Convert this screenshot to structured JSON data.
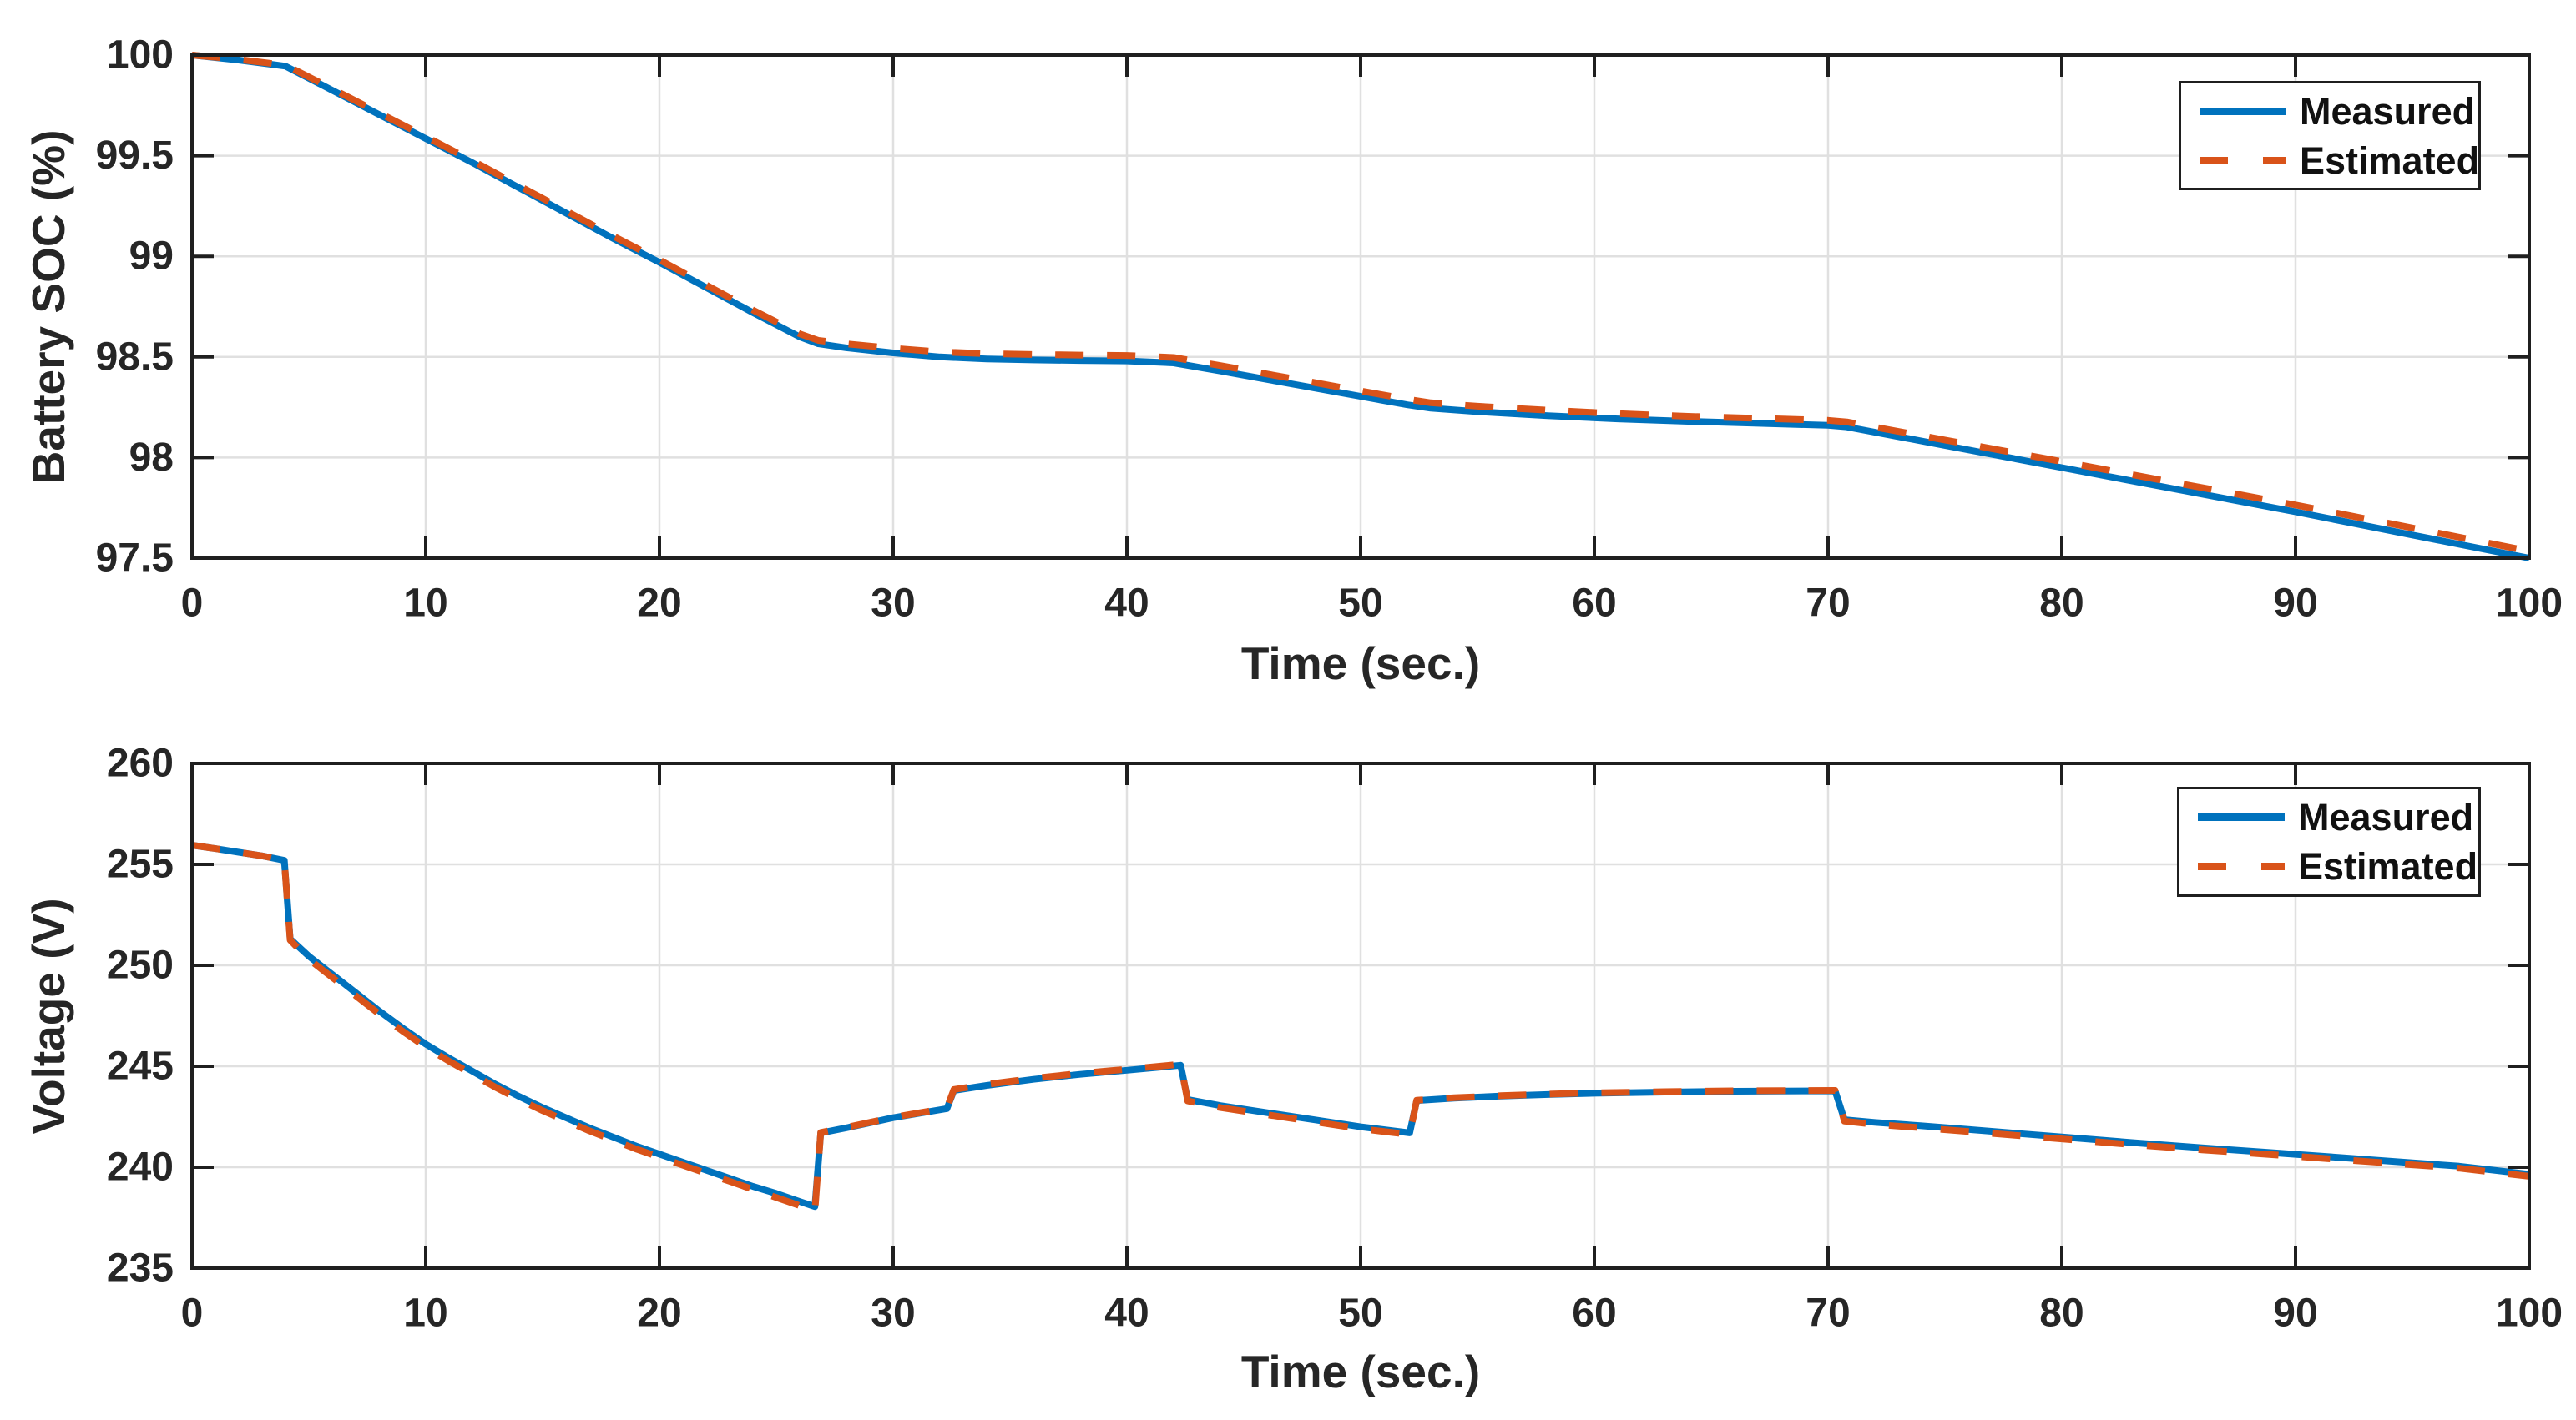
{
  "figure": {
    "background": "#ffffff",
    "axis_color": "#1f1f1f",
    "grid_color": "#e0e0e0",
    "tick_text_color": "#262626"
  },
  "chart_data": [
    {
      "type": "line",
      "title": "",
      "xlabel": "Time (sec.)",
      "ylabel": "Battery SOC (%)",
      "xlim": [
        0,
        100
      ],
      "ylim": [
        97.5,
        100
      ],
      "xticks": [
        0,
        10,
        20,
        30,
        40,
        50,
        60,
        70,
        80,
        90,
        100
      ],
      "xtick_labels": [
        "0",
        "10",
        "20",
        "30",
        "40",
        "50",
        "60",
        "70",
        "80",
        "90",
        "100"
      ],
      "yticks": [
        97.5,
        98,
        98.5,
        99,
        99.5,
        100
      ],
      "ytick_labels": [
        "97.5",
        "98",
        "98.5",
        "99",
        "99.5",
        "100"
      ],
      "grid": true,
      "legend_position": "top-right",
      "series": [
        {
          "name": "Measured",
          "color": "#0072BD",
          "style": "solid",
          "points": [
            [
              0,
              100
            ],
            [
              2,
              99.975
            ],
            [
              4,
              99.945
            ],
            [
              6,
              99.825
            ],
            [
              8,
              99.705
            ],
            [
              10,
              99.585
            ],
            [
              12,
              99.465
            ],
            [
              14,
              99.34
            ],
            [
              16,
              99.215
            ],
            [
              18,
              99.09
            ],
            [
              20,
              98.97
            ],
            [
              22,
              98.845
            ],
            [
              24,
              98.72
            ],
            [
              26,
              98.6
            ],
            [
              26.8,
              98.565
            ],
            [
              28,
              98.545
            ],
            [
              30,
              98.52
            ],
            [
              32,
              98.5
            ],
            [
              34,
              98.49
            ],
            [
              36,
              98.485
            ],
            [
              38,
              98.482
            ],
            [
              40,
              98.48
            ],
            [
              42,
              98.47
            ],
            [
              44,
              98.43
            ],
            [
              46,
              98.388
            ],
            [
              48,
              98.346
            ],
            [
              50,
              98.304
            ],
            [
              52,
              98.262
            ],
            [
              53,
              98.245
            ],
            [
              55,
              98.228
            ],
            [
              58,
              98.208
            ],
            [
              61,
              98.192
            ],
            [
              64,
              98.18
            ],
            [
              67,
              98.17
            ],
            [
              70,
              98.16
            ],
            [
              70.8,
              98.152
            ],
            [
              75,
              98.06
            ],
            [
              80,
              97.95
            ],
            [
              85,
              97.84
            ],
            [
              90,
              97.73
            ],
            [
              95,
              97.615
            ],
            [
              100,
              97.5
            ]
          ]
        },
        {
          "name": "Estimated",
          "color": "#D95319",
          "style": "dashed",
          "points": [
            [
              0,
              100
            ],
            [
              2,
              99.978
            ],
            [
              4,
              99.95
            ],
            [
              6,
              99.832
            ],
            [
              8,
              99.713
            ],
            [
              10,
              99.594
            ],
            [
              12,
              99.475
            ],
            [
              14,
              99.35
            ],
            [
              16,
              99.226
            ],
            [
              18,
              99.102
            ],
            [
              20,
              98.982
            ],
            [
              22,
              98.857
            ],
            [
              24,
              98.733
            ],
            [
              26,
              98.615
            ],
            [
              26.8,
              98.582
            ],
            [
              28,
              98.565
            ],
            [
              30,
              98.543
            ],
            [
              32,
              98.525
            ],
            [
              34,
              98.516
            ],
            [
              36,
              98.512
            ],
            [
              38,
              98.509
            ],
            [
              40,
              98.507
            ],
            [
              42,
              98.497
            ],
            [
              44,
              98.457
            ],
            [
              46,
              98.415
            ],
            [
              48,
              98.373
            ],
            [
              50,
              98.331
            ],
            [
              52,
              98.29
            ],
            [
              53,
              98.272
            ],
            [
              55,
              98.255
            ],
            [
              58,
              98.235
            ],
            [
              61,
              98.218
            ],
            [
              64,
              98.205
            ],
            [
              67,
              98.195
            ],
            [
              70,
              98.185
            ],
            [
              70.8,
              98.177
            ],
            [
              75,
              98.087
            ],
            [
              80,
              97.98
            ],
            [
              85,
              97.872
            ],
            [
              90,
              97.764
            ],
            [
              95,
              97.65
            ],
            [
              100,
              97.535
            ]
          ]
        }
      ]
    },
    {
      "type": "line",
      "title": "",
      "xlabel": "Time (sec.)",
      "ylabel": "Voltage (V)",
      "xlim": [
        0,
        100
      ],
      "ylim": [
        235,
        260
      ],
      "xticks": [
        0,
        10,
        20,
        30,
        40,
        50,
        60,
        70,
        80,
        90,
        100
      ],
      "xtick_labels": [
        "0",
        "10",
        "20",
        "30",
        "40",
        "50",
        "60",
        "70",
        "80",
        "90",
        "100"
      ],
      "yticks": [
        235,
        240,
        245,
        250,
        255,
        260
      ],
      "ytick_labels": [
        "235",
        "240",
        "245",
        "250",
        "255",
        "260"
      ],
      "grid": true,
      "legend_position": "top-right",
      "series": [
        {
          "name": "Measured",
          "color": "#0072BD",
          "style": "solid",
          "points": [
            [
              0,
              255.95
            ],
            [
              1,
              255.78
            ],
            [
              2,
              255.6
            ],
            [
              3,
              255.42
            ],
            [
              3.95,
              255.2
            ],
            [
              4.2,
              251.3
            ],
            [
              5,
              250.45
            ],
            [
              6,
              249.55
            ],
            [
              7,
              248.65
            ],
            [
              8,
              247.75
            ],
            [
              9,
              246.9
            ],
            [
              10,
              246.1
            ],
            [
              11,
              245.4
            ],
            [
              12,
              244.75
            ],
            [
              13,
              244.1
            ],
            [
              14,
              243.5
            ],
            [
              15,
              242.95
            ],
            [
              16,
              242.45
            ],
            [
              17,
              241.95
            ],
            [
              18,
              241.5
            ],
            [
              19,
              241.05
            ],
            [
              20,
              240.65
            ],
            [
              21,
              240.25
            ],
            [
              22,
              239.85
            ],
            [
              23,
              239.45
            ],
            [
              24,
              239.05
            ],
            [
              25,
              238.7
            ],
            [
              26,
              238.3
            ],
            [
              26.65,
              238.05
            ],
            [
              26.9,
              241.7
            ],
            [
              28,
              241.95
            ],
            [
              29,
              242.2
            ],
            [
              30,
              242.45
            ],
            [
              31,
              242.65
            ],
            [
              32.3,
              242.9
            ],
            [
              32.6,
              243.8
            ],
            [
              34,
              244.05
            ],
            [
              36,
              244.35
            ],
            [
              38,
              244.6
            ],
            [
              40,
              244.8
            ],
            [
              42.3,
              245.05
            ],
            [
              42.6,
              243.35
            ],
            [
              44,
              243.05
            ],
            [
              46,
              242.7
            ],
            [
              48,
              242.35
            ],
            [
              50,
              242.0
            ],
            [
              52.1,
              241.7
            ],
            [
              52.4,
              243.3
            ],
            [
              54,
              243.42
            ],
            [
              56,
              243.52
            ],
            [
              58,
              243.6
            ],
            [
              60,
              243.66
            ],
            [
              63,
              243.72
            ],
            [
              66,
              243.76
            ],
            [
              70.3,
              243.78
            ],
            [
              70.7,
              242.35
            ],
            [
              72,
              242.22
            ],
            [
              74,
              242.05
            ],
            [
              76,
              241.87
            ],
            [
              78,
              241.68
            ],
            [
              80,
              241.5
            ],
            [
              83,
              241.22
            ],
            [
              86,
              240.96
            ],
            [
              89,
              240.72
            ],
            [
              92,
              240.47
            ],
            [
              95,
              240.22
            ],
            [
              97,
              240.05
            ],
            [
              100,
              239.65
            ]
          ]
        },
        {
          "name": "Estimated",
          "color": "#D95319",
          "style": "dashed",
          "points": [
            [
              0,
              255.95
            ],
            [
              1,
              255.78
            ],
            [
              2,
              255.6
            ],
            [
              3,
              255.42
            ],
            [
              3.95,
              255.2
            ],
            [
              4.2,
              251.25
            ],
            [
              5,
              250.3
            ],
            [
              6,
              249.4
            ],
            [
              7,
              248.5
            ],
            [
              8,
              247.6
            ],
            [
              9,
              246.75
            ],
            [
              10,
              245.95
            ],
            [
              11,
              245.25
            ],
            [
              12,
              244.6
            ],
            [
              13,
              243.95
            ],
            [
              14,
              243.35
            ],
            [
              15,
              242.8
            ],
            [
              16,
              242.3
            ],
            [
              17,
              241.8
            ],
            [
              18,
              241.35
            ],
            [
              19,
              240.9
            ],
            [
              20,
              240.5
            ],
            [
              21,
              240.1
            ],
            [
              22,
              239.7
            ],
            [
              23,
              239.3
            ],
            [
              24,
              238.9
            ],
            [
              25,
              238.5
            ],
            [
              26,
              238.1
            ],
            [
              26.65,
              237.82
            ],
            [
              26.9,
              241.72
            ],
            [
              28,
              241.97
            ],
            [
              29,
              242.22
            ],
            [
              30,
              242.47
            ],
            [
              31,
              242.67
            ],
            [
              32.3,
              242.92
            ],
            [
              32.6,
              243.85
            ],
            [
              34,
              244.1
            ],
            [
              36,
              244.4
            ],
            [
              38,
              244.65
            ],
            [
              40,
              244.85
            ],
            [
              42.3,
              245.1
            ],
            [
              42.6,
              243.28
            ],
            [
              44,
              242.95
            ],
            [
              46,
              242.6
            ],
            [
              48,
              242.25
            ],
            [
              50,
              241.9
            ],
            [
              52.1,
              241.62
            ],
            [
              52.4,
              243.32
            ],
            [
              54,
              243.44
            ],
            [
              56,
              243.54
            ],
            [
              58,
              243.62
            ],
            [
              60,
              243.68
            ],
            [
              63,
              243.74
            ],
            [
              66,
              243.78
            ],
            [
              70.3,
              243.8
            ],
            [
              70.7,
              242.28
            ],
            [
              72,
              242.12
            ],
            [
              74,
              241.95
            ],
            [
              76,
              241.77
            ],
            [
              78,
              241.58
            ],
            [
              80,
              241.4
            ],
            [
              83,
              241.12
            ],
            [
              86,
              240.86
            ],
            [
              89,
              240.62
            ],
            [
              92,
              240.37
            ],
            [
              95,
              240.12
            ],
            [
              97,
              239.95
            ],
            [
              100,
              239.55
            ]
          ]
        }
      ]
    }
  ]
}
